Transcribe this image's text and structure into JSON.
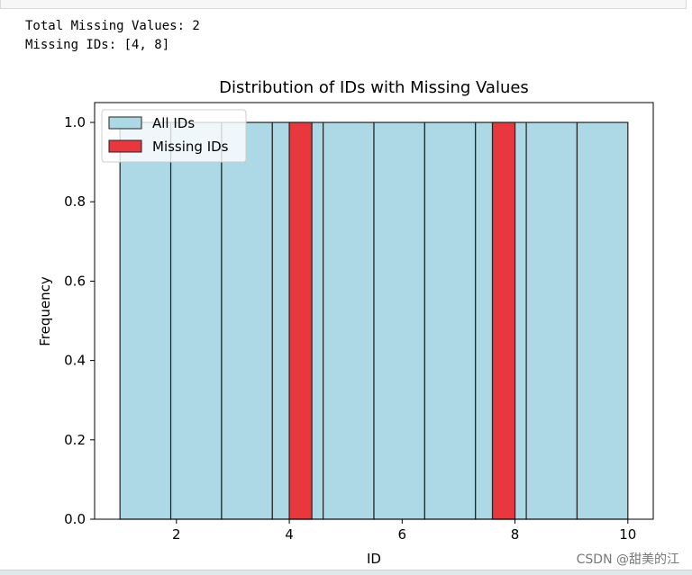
{
  "output": {
    "line1": "Total Missing Values: 2",
    "line2": "Missing IDs: [4, 8]"
  },
  "watermark": "CSDN @甜美的江",
  "chart_data": {
    "type": "bar",
    "title": "Distribution of IDs with Missing Values",
    "xlabel": "ID",
    "ylabel": "Frequency",
    "xlim": [
      0.55,
      10.45
    ],
    "ylim": [
      0,
      1.05
    ],
    "xticks": [
      2,
      4,
      6,
      8,
      10
    ],
    "yticks": [
      0.0,
      0.2,
      0.4,
      0.6,
      0.8,
      1.0
    ],
    "legend_position": "top-left",
    "series": [
      {
        "name": "All IDs",
        "color": "#add8e6",
        "bins": [
          {
            "start": 1.0,
            "end": 1.9,
            "value": 1.0
          },
          {
            "start": 1.9,
            "end": 2.8,
            "value": 1.0
          },
          {
            "start": 2.8,
            "end": 3.7,
            "value": 1.0
          },
          {
            "start": 3.7,
            "end": 4.6,
            "value": 1.0
          },
          {
            "start": 4.6,
            "end": 5.5,
            "value": 1.0
          },
          {
            "start": 5.5,
            "end": 6.4,
            "value": 1.0
          },
          {
            "start": 6.4,
            "end": 7.3,
            "value": 1.0
          },
          {
            "start": 7.3,
            "end": 8.2,
            "value": 1.0
          },
          {
            "start": 8.2,
            "end": 9.1,
            "value": 1.0
          },
          {
            "start": 9.1,
            "end": 10.0,
            "value": 1.0
          }
        ]
      },
      {
        "name": "Missing IDs",
        "color": "#e8383d",
        "bins": [
          {
            "start": 4.0,
            "end": 4.4,
            "value": 1.0
          },
          {
            "start": 7.6,
            "end": 8.0,
            "value": 1.0
          }
        ]
      }
    ]
  }
}
